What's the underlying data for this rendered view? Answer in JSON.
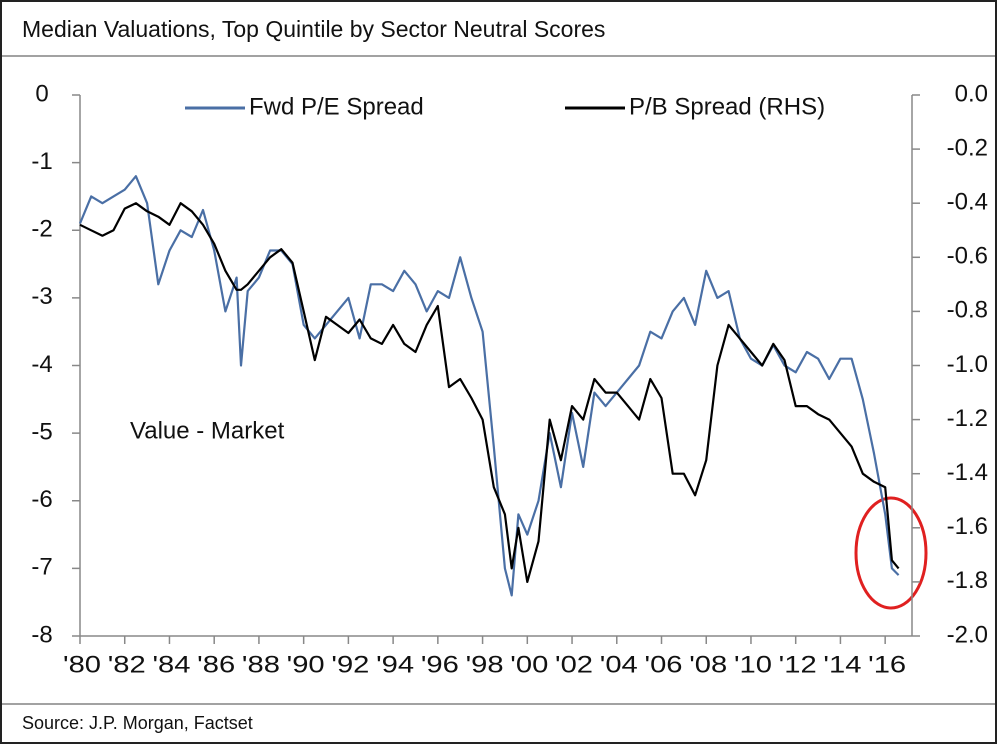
{
  "chart_data": {
    "type": "line",
    "title": "Median Valuations, Top Quintile by Sector Neutral Scores",
    "source": "Source: J.P. Morgan, Factset",
    "annotations": [
      "Value - Market"
    ],
    "legend": "top",
    "x": [
      1980,
      1980.5,
      1981,
      1981.5,
      1982,
      1982.5,
      1983,
      1983.5,
      1984,
      1984.5,
      1985,
      1985.5,
      1986,
      1986.5,
      1987,
      1987.2,
      1987.5,
      1988,
      1988.5,
      1989,
      1989.5,
      1990,
      1990.5,
      1991,
      1991.5,
      1992,
      1992.5,
      1993,
      1993.5,
      1994,
      1994.5,
      1995,
      1995.5,
      1996,
      1996.5,
      1997,
      1997.5,
      1998,
      1998.5,
      1999,
      1999.3,
      1999.6,
      2000,
      2000.5,
      2001,
      2001.5,
      2002,
      2002.5,
      2003,
      2003.5,
      2004,
      2004.5,
      2005,
      2005.5,
      2006,
      2006.5,
      2007,
      2007.5,
      2008,
      2008.5,
      2009,
      2009.5,
      2010,
      2010.5,
      2011,
      2011.5,
      2012,
      2012.5,
      2013,
      2013.5,
      2014,
      2014.5,
      2015,
      2015.5,
      2016,
      2016.3,
      2016.6
    ],
    "series": [
      {
        "name": "Fwd P/E Spread",
        "color": "#4a6fa5",
        "axis": "y",
        "values": [
          -1.9,
          -1.5,
          -1.6,
          -1.5,
          -1.4,
          -1.2,
          -1.6,
          -2.8,
          -2.3,
          -2.0,
          -2.1,
          -1.7,
          -2.3,
          -3.2,
          -2.7,
          -4.0,
          -2.9,
          -2.7,
          -2.3,
          -2.3,
          -2.5,
          -3.4,
          -3.6,
          -3.4,
          -3.2,
          -3.0,
          -3.6,
          -2.8,
          -2.8,
          -2.9,
          -2.6,
          -2.8,
          -3.2,
          -2.9,
          -3.0,
          -2.4,
          -3.0,
          -3.5,
          -5.2,
          -7.0,
          -7.4,
          -6.2,
          -6.5,
          -6.0,
          -5.0,
          -5.8,
          -4.7,
          -5.5,
          -4.4,
          -4.6,
          -4.4,
          -4.2,
          -4.0,
          -3.5,
          -3.6,
          -3.2,
          -3.0,
          -3.4,
          -2.6,
          -3.0,
          -2.9,
          -3.6,
          -3.9,
          -4.0,
          -3.7,
          -4.0,
          -4.1,
          -3.8,
          -3.9,
          -4.2,
          -3.9,
          -3.9,
          -4.5,
          -5.3,
          -6.2,
          -7.0,
          -7.1
        ]
      },
      {
        "name": "P/B Spread (RHS)",
        "color": "#000000",
        "axis": "y2",
        "values": [
          -0.48,
          -0.5,
          -0.52,
          -0.5,
          -0.42,
          -0.4,
          -0.43,
          -0.45,
          -0.48,
          -0.4,
          -0.43,
          -0.48,
          -0.55,
          -0.65,
          -0.72,
          -0.72,
          -0.7,
          -0.65,
          -0.6,
          -0.57,
          -0.62,
          -0.8,
          -0.98,
          -0.82,
          -0.85,
          -0.88,
          -0.83,
          -0.9,
          -0.92,
          -0.85,
          -0.92,
          -0.95,
          -0.85,
          -0.78,
          -1.08,
          -1.05,
          -1.12,
          -1.2,
          -1.45,
          -1.55,
          -1.75,
          -1.6,
          -1.8,
          -1.65,
          -1.2,
          -1.35,
          -1.15,
          -1.2,
          -1.05,
          -1.1,
          -1.1,
          -1.15,
          -1.2,
          -1.05,
          -1.12,
          -1.4,
          -1.4,
          -1.48,
          -1.35,
          -1.0,
          -0.85,
          -0.9,
          -0.95,
          -1.0,
          -0.92,
          -0.98,
          -1.15,
          -1.15,
          -1.18,
          -1.2,
          -1.25,
          -1.3,
          -1.4,
          -1.43,
          -1.45,
          -1.72,
          -1.75
        ]
      }
    ],
    "xlim": [
      1980,
      2017.2
    ],
    "xticks": [
      {
        "value": 1980,
        "label": "'80"
      },
      {
        "value": 1982,
        "label": "'82"
      },
      {
        "value": 1984,
        "label": "'84"
      },
      {
        "value": 1986,
        "label": "'86"
      },
      {
        "value": 1988,
        "label": "'88"
      },
      {
        "value": 1990,
        "label": "'90"
      },
      {
        "value": 1992,
        "label": "'92"
      },
      {
        "value": 1994,
        "label": "'94"
      },
      {
        "value": 1996,
        "label": "'96"
      },
      {
        "value": 1998,
        "label": "'98"
      },
      {
        "value": 2000,
        "label": "'00"
      },
      {
        "value": 2002,
        "label": "'02"
      },
      {
        "value": 2004,
        "label": "'04"
      },
      {
        "value": 2006,
        "label": "'06"
      },
      {
        "value": 2008,
        "label": "'08"
      },
      {
        "value": 2010,
        "label": "'10"
      },
      {
        "value": 2012,
        "label": "'12"
      },
      {
        "value": 2014,
        "label": "'14"
      },
      {
        "value": 2016,
        "label": "'16"
      }
    ],
    "ylim": [
      -8,
      0
    ],
    "yticks": [
      0,
      -1,
      -2,
      -3,
      -4,
      -5,
      -6,
      -7,
      -8
    ],
    "y2lim": [
      -2,
      0
    ],
    "y2ticks": [
      {
        "value": 0,
        "label": "0.0"
      },
      -0.2,
      -0.4,
      -0.6,
      -0.8,
      {
        "value": -1,
        "label": "-1.0"
      },
      -1.2,
      -1.4,
      -1.6,
      -1.8,
      {
        "value": -2,
        "label": "-2.0"
      }
    ],
    "grid": false
  }
}
